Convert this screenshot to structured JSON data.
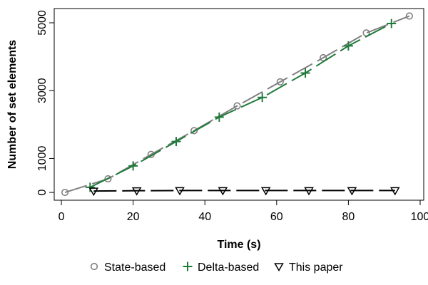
{
  "chart_data": {
    "type": "line",
    "title": "",
    "xlabel": "Time (s)",
    "ylabel": "Number of set elements",
    "xlim": [
      -2,
      101
    ],
    "ylim": [
      -230,
      5420
    ],
    "xticks": [
      0,
      20,
      40,
      60,
      80,
      100
    ],
    "yticks": [
      0,
      1000,
      3000,
      5000
    ],
    "grid": false,
    "legend": {
      "position": "bottom",
      "orientation": "horizontal"
    },
    "series": [
      {
        "name": "State-based",
        "color": "#808080",
        "marker": "circle",
        "line": "dashed",
        "x": [
          1,
          13,
          25,
          37,
          49,
          61,
          73,
          85,
          97
        ],
        "y": [
          0,
          400,
          1120,
          1820,
          2550,
          3260,
          3970,
          4700,
          5200
        ]
      },
      {
        "name": "Delta-based",
        "color": "#1f7a3a",
        "marker": "plus",
        "line": "dashed",
        "x": [
          8,
          20,
          32,
          44,
          56,
          68,
          80,
          92
        ],
        "y": [
          150,
          780,
          1500,
          2220,
          2800,
          3520,
          4320,
          4980
        ]
      },
      {
        "name": "This paper",
        "color": "#000000",
        "marker": "triangle-down",
        "line": "dashed",
        "x": [
          9,
          21,
          33,
          45,
          57,
          69,
          81,
          93
        ],
        "y": [
          40,
          50,
          55,
          55,
          55,
          55,
          55,
          55
        ]
      }
    ]
  }
}
